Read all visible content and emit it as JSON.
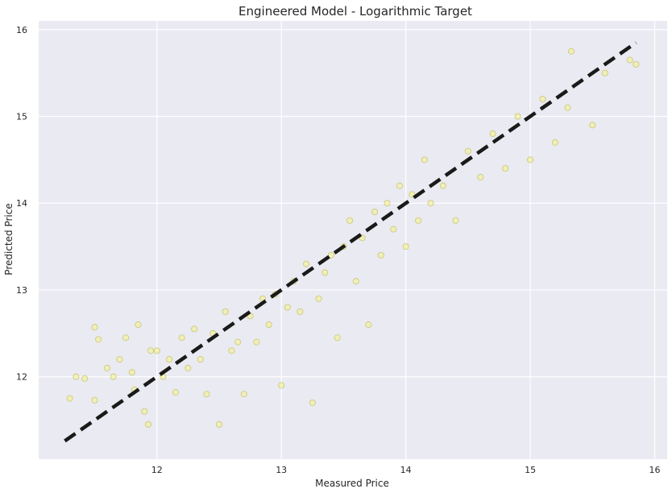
{
  "chart_data": {
    "type": "scatter",
    "title": "Engineered Model - Logarithmic Target",
    "xlabel": "Measured Price",
    "ylabel": "Predicted Price",
    "xlim": [
      11.05,
      16.1
    ],
    "ylim": [
      11.05,
      16.1
    ],
    "xticks": [
      12,
      13,
      14,
      15,
      16
    ],
    "yticks": [
      12,
      13,
      14,
      15,
      16
    ],
    "grid": true,
    "legend": "none",
    "colors": {
      "background": "#eaeaf2",
      "grid": "#ffffff",
      "point_fill": "#f2ef9a",
      "point_edge": "#b9b64a",
      "reference_line": "#1a1a1a"
    },
    "reference_line": {
      "x": [
        11.26,
        15.85
      ],
      "y": [
        11.26,
        15.85
      ],
      "style": "dashed"
    },
    "series": [
      {
        "points": [
          [
            11.3,
            11.75
          ],
          [
            11.35,
            12.0
          ],
          [
            11.42,
            11.98
          ],
          [
            11.5,
            11.73
          ],
          [
            11.5,
            12.57
          ],
          [
            11.53,
            12.43
          ],
          [
            11.6,
            12.1
          ],
          [
            11.65,
            12.0
          ],
          [
            11.7,
            12.2
          ],
          [
            11.75,
            12.45
          ],
          [
            11.8,
            12.05
          ],
          [
            11.82,
            11.85
          ],
          [
            11.85,
            12.6
          ],
          [
            11.9,
            11.6
          ],
          [
            11.93,
            11.45
          ],
          [
            11.95,
            12.3
          ],
          [
            12.0,
            12.3
          ],
          [
            12.05,
            12.0
          ],
          [
            12.1,
            12.2
          ],
          [
            12.15,
            11.82
          ],
          [
            12.2,
            12.45
          ],
          [
            12.25,
            12.1
          ],
          [
            12.3,
            12.55
          ],
          [
            12.35,
            12.2
          ],
          [
            12.4,
            11.8
          ],
          [
            12.45,
            12.5
          ],
          [
            12.5,
            11.45
          ],
          [
            12.55,
            12.75
          ],
          [
            12.6,
            12.3
          ],
          [
            12.65,
            12.4
          ],
          [
            12.7,
            11.8
          ],
          [
            12.75,
            12.7
          ],
          [
            12.8,
            12.4
          ],
          [
            12.85,
            12.9
          ],
          [
            12.9,
            12.6
          ],
          [
            12.95,
            12.95
          ],
          [
            13.0,
            11.9
          ],
          [
            13.05,
            12.8
          ],
          [
            13.1,
            13.1
          ],
          [
            13.15,
            12.75
          ],
          [
            13.2,
            13.3
          ],
          [
            13.25,
            11.7
          ],
          [
            13.3,
            12.9
          ],
          [
            13.35,
            13.2
          ],
          [
            13.4,
            13.4
          ],
          [
            13.45,
            12.45
          ],
          [
            13.5,
            13.5
          ],
          [
            13.55,
            13.8
          ],
          [
            13.6,
            13.1
          ],
          [
            13.65,
            13.6
          ],
          [
            13.7,
            12.6
          ],
          [
            13.75,
            13.9
          ],
          [
            13.8,
            13.4
          ],
          [
            13.85,
            14.0
          ],
          [
            13.9,
            13.7
          ],
          [
            13.95,
            14.2
          ],
          [
            14.0,
            13.5
          ],
          [
            14.05,
            14.1
          ],
          [
            14.1,
            13.8
          ],
          [
            14.15,
            14.5
          ],
          [
            14.2,
            14.0
          ],
          [
            14.3,
            14.2
          ],
          [
            14.4,
            13.8
          ],
          [
            14.5,
            14.6
          ],
          [
            14.6,
            14.3
          ],
          [
            14.7,
            14.8
          ],
          [
            14.8,
            14.4
          ],
          [
            14.9,
            15.0
          ],
          [
            15.0,
            14.5
          ],
          [
            15.1,
            15.2
          ],
          [
            15.2,
            14.7
          ],
          [
            15.3,
            15.1
          ],
          [
            15.33,
            15.75
          ],
          [
            15.5,
            14.9
          ],
          [
            15.6,
            15.5
          ],
          [
            15.8,
            15.65
          ],
          [
            15.85,
            15.6
          ]
        ]
      }
    ]
  }
}
